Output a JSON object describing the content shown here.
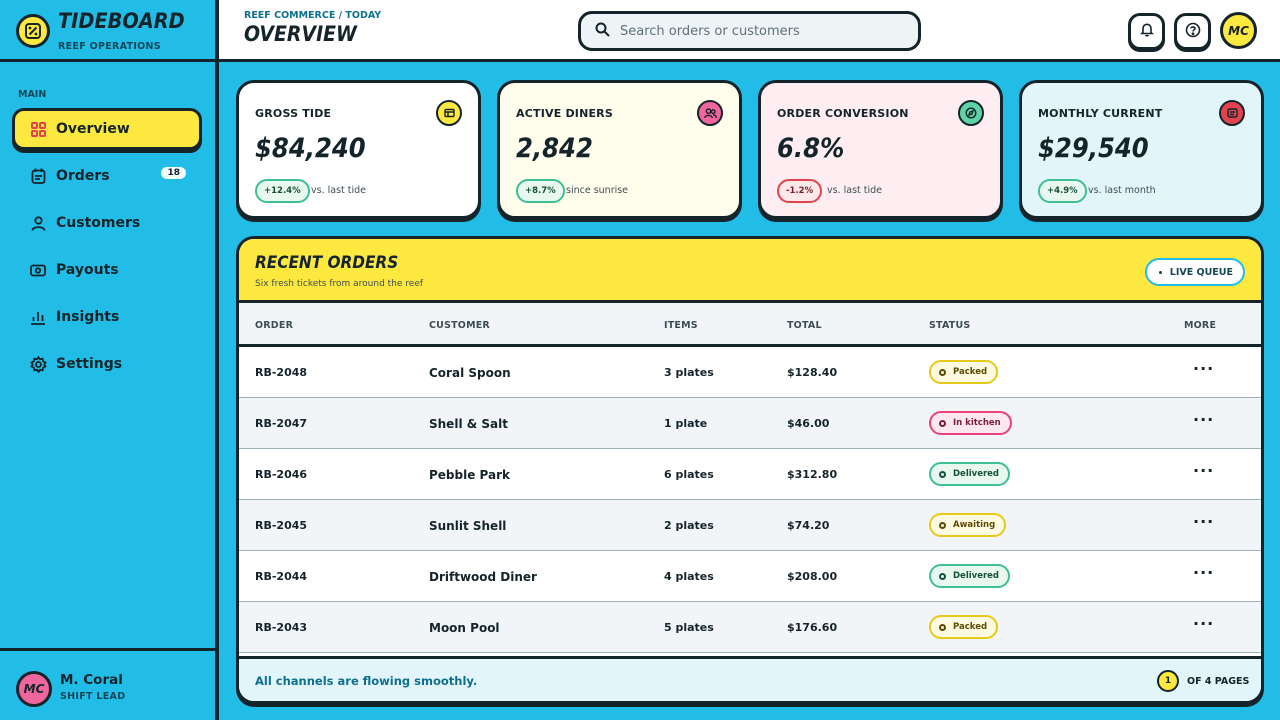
{
  "brand": {
    "name": "TIDEBOARD",
    "subtitle": "REEF OPERATIONS",
    "logo_icon": "percent-icon"
  },
  "sidebar": {
    "section": "MAIN",
    "items": [
      {
        "label": "Overview",
        "icon": "grid-icon",
        "active": true
      },
      {
        "label": "Orders",
        "icon": "clipboard-icon",
        "badge": "18"
      },
      {
        "label": "Customers",
        "icon": "user-icon"
      },
      {
        "label": "Payouts",
        "icon": "cash-icon"
      },
      {
        "label": "Insights",
        "icon": "bar-chart-icon"
      },
      {
        "label": "Settings",
        "icon": "gear-icon"
      }
    ],
    "profile": {
      "initials": "MC",
      "name": "M. Coral",
      "role": "SHIFT LEAD"
    }
  },
  "header": {
    "breadcrumb": "REEF COMMERCE / TODAY",
    "title": "OVERVIEW",
    "search_placeholder": "Search orders or customers",
    "avatar_initials": "MC"
  },
  "stats": [
    {
      "label": "GROSS TIDE",
      "value": "$84,240",
      "delta": "+12.4%",
      "note": "vs. last tide",
      "trend": "up",
      "bg": "#ffffff",
      "icon_bg": "#fde83f",
      "icon": "receipt-icon"
    },
    {
      "label": "ACTIVE DINERS",
      "value": "2,842",
      "delta": "+8.7%",
      "note": "since sunrise",
      "trend": "up",
      "bg": "#fffdec",
      "icon_bg": "#f0669c",
      "icon": "users-icon"
    },
    {
      "label": "ORDER CONVERSION",
      "value": "6.8%",
      "delta": "-1.2%",
      "note": "vs. last tide",
      "trend": "down",
      "bg": "#feeef1",
      "icon_bg": "#5fd3a6",
      "icon": "compass-icon"
    },
    {
      "label": "MONTHLY CURRENT",
      "value": "$29,540",
      "delta": "+4.9%",
      "note": "vs. last month",
      "trend": "up",
      "bg": "#e2f5fb",
      "icon_bg": "#e3434e",
      "icon": "wallet-icon"
    }
  ],
  "orders": {
    "title": "RECENT ORDERS",
    "subtitle": "Six fresh tickets from around the reef",
    "live_label": "LIVE QUEUE",
    "columns": [
      "ORDER",
      "CUSTOMER",
      "ITEMS",
      "TOTAL",
      "STATUS",
      "MORE"
    ],
    "rows": [
      {
        "id": "RB-2048",
        "customer": "Coral Spoon",
        "items": "3 plates",
        "total": "$128.40",
        "status": "Packed",
        "kind": "packed"
      },
      {
        "id": "RB-2047",
        "customer": "Shell & Salt",
        "items": "1 plate",
        "total": "$46.00",
        "status": "In kitchen",
        "kind": "kitchen"
      },
      {
        "id": "RB-2046",
        "customer": "Pebble Park",
        "items": "6 plates",
        "total": "$312.80",
        "status": "Delivered",
        "kind": "delivered"
      },
      {
        "id": "RB-2045",
        "customer": "Sunlit Shell",
        "items": "2 plates",
        "total": "$74.20",
        "status": "Awaiting",
        "kind": "awaiting"
      },
      {
        "id": "RB-2044",
        "customer": "Driftwood Diner",
        "items": "4 plates",
        "total": "$208.00",
        "status": "Delivered",
        "kind": "delivered"
      },
      {
        "id": "RB-2043",
        "customer": "Moon Pool",
        "items": "5 plates",
        "total": "$176.60",
        "status": "Packed",
        "kind": "packed"
      }
    ],
    "more_glyph": "···",
    "footer_text": "All channels are flowing smoothly.",
    "page": "1",
    "page_of": "OF 4 PAGES"
  }
}
